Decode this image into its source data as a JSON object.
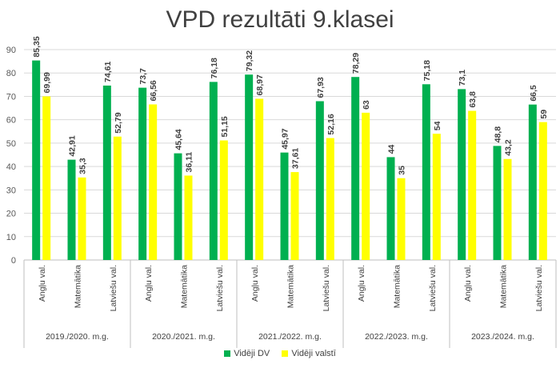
{
  "chart_data": {
    "type": "bar",
    "title": "VPD rezultāti 9.klasei",
    "xlabel": "",
    "ylabel": "",
    "ylim": [
      0,
      90
    ],
    "yticks": [
      0,
      10,
      20,
      30,
      40,
      50,
      60,
      70,
      80,
      90
    ],
    "grid": true,
    "legend_position": "bottom",
    "groups": [
      "2019./2020. m.g.",
      "2020./2021. m.g.",
      "2021./2022. m.g.",
      "2022./2023. m.g.",
      "2023./2024. m.g."
    ],
    "subcategories": [
      "Angļu val.",
      "Matemātika",
      "Latviešu val."
    ],
    "series": [
      {
        "name": "Vidēji DV",
        "color": "#00B050",
        "values": [
          85.35,
          42.91,
          74.61,
          73.7,
          45.64,
          76.18,
          79.32,
          45.97,
          67.93,
          78.29,
          44,
          75.18,
          73.1,
          48.8,
          66.5
        ],
        "labels": [
          "85,35",
          "42,91",
          "74,61",
          "73,7",
          "45,64",
          "76,18",
          "79,32",
          "45,97",
          "67,93",
          "78,29",
          "44",
          "75,18",
          "73,1",
          "48,8",
          "66,5"
        ]
      },
      {
        "name": "Vidēji valstī",
        "color": "#FFFF00",
        "values": [
          69.99,
          35.3,
          52.79,
          66.56,
          36.11,
          51.15,
          68.97,
          37.61,
          52.16,
          63,
          35,
          54,
          63.8,
          43.2,
          59
        ],
        "labels": [
          "69,99",
          "35,3",
          "52,79",
          "66,56",
          "36,11",
          "51,15",
          "68,97",
          "37,61",
          "52,16",
          "63",
          "35",
          "54",
          "63,8",
          "43,2",
          "59"
        ]
      }
    ]
  }
}
